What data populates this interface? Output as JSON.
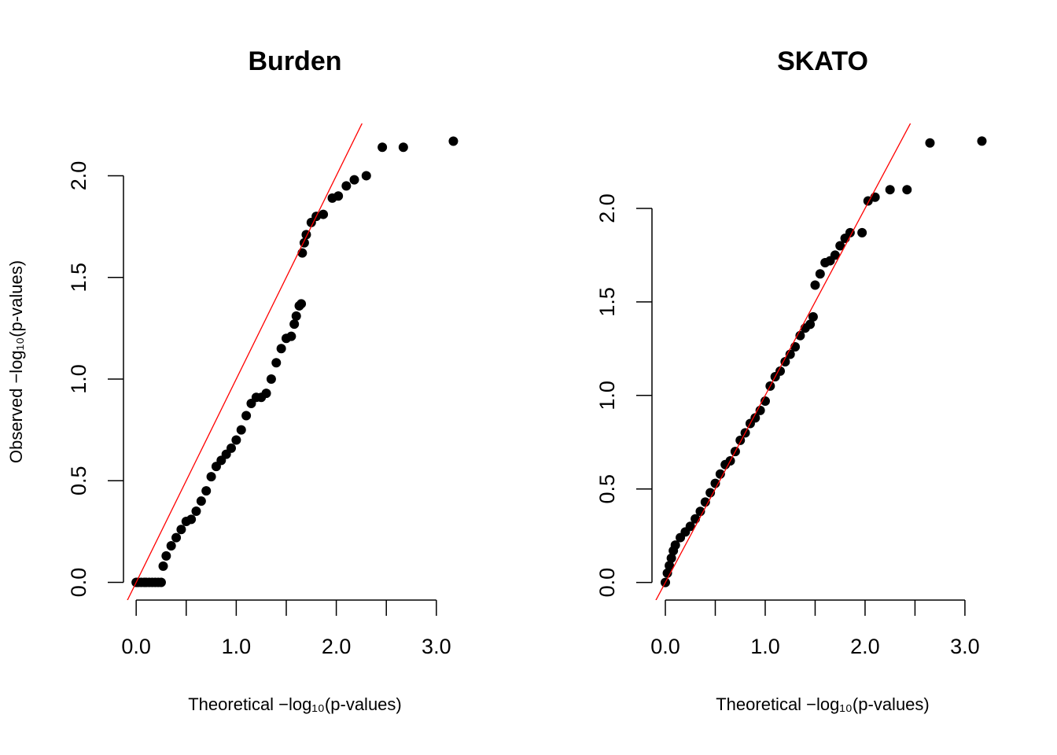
{
  "chart_data": [
    {
      "type": "scatter",
      "title": "Burden",
      "xlabel": "Theoretical −log₁₀(p-values)",
      "ylabel": "Observed −log₁₀(p-values)",
      "color": "#000000",
      "x": [
        0.0,
        0.02,
        0.05,
        0.08,
        0.1,
        0.13,
        0.16,
        0.19,
        0.22,
        0.25,
        0.27,
        0.3,
        0.35,
        0.4,
        0.45,
        0.5,
        0.55,
        0.6,
        0.65,
        0.7,
        0.75,
        0.8,
        0.85,
        0.9,
        0.95,
        1.0,
        1.05,
        1.1,
        1.15,
        1.2,
        1.25,
        1.3,
        1.35,
        1.4,
        1.45,
        1.5,
        1.55,
        1.58,
        1.6,
        1.63,
        1.65,
        1.66,
        1.68,
        1.7,
        1.75,
        1.8,
        1.87,
        1.96,
        2.02,
        2.1,
        2.18,
        2.3,
        2.46,
        2.67,
        3.17
      ],
      "values": [
        0,
        0,
        0,
        0,
        0,
        0,
        0,
        0,
        0,
        0,
        0.08,
        0.13,
        0.18,
        0.22,
        0.26,
        0.3,
        0.31,
        0.35,
        0.4,
        0.45,
        0.52,
        0.57,
        0.6,
        0.63,
        0.66,
        0.7,
        0.75,
        0.82,
        0.88,
        0.91,
        0.91,
        0.93,
        1.0,
        1.08,
        1.15,
        1.2,
        1.21,
        1.27,
        1.31,
        1.36,
        1.37,
        1.62,
        1.67,
        1.71,
        1.77,
        1.8,
        1.81,
        1.89,
        1.9,
        1.95,
        1.98,
        2.0,
        2.14,
        2.14,
        2.17
      ],
      "xlim": [
        -0.127,
        3.3
      ],
      "ylim": [
        -0.087,
        2.257
      ],
      "xticks": [
        {
          "value": 0,
          "label": "0.0"
        },
        {
          "value": 0.5,
          "label": null
        },
        {
          "value": 1,
          "label": "1.0"
        },
        {
          "value": 1.5,
          "label": null
        },
        {
          "value": 2,
          "label": "2.0"
        },
        {
          "value": 2.5,
          "label": null
        },
        {
          "value": 3,
          "label": "3.0"
        }
      ],
      "yticks": [
        {
          "value": 0,
          "label": "0.0"
        },
        {
          "value": 0.5,
          "label": "0.5"
        },
        {
          "value": 1,
          "label": "1.0"
        },
        {
          "value": 1.5,
          "label": "1.5"
        },
        {
          "value": 2,
          "label": "2.0"
        }
      ],
      "reference_line": {
        "slope": 1,
        "intercept": 0,
        "color": "#ff0000"
      }
    },
    {
      "type": "scatter",
      "title": "SKATO",
      "xlabel": "Theoretical −log₁₀(p-values)",
      "color": "#000000",
      "x": [
        0,
        0.02,
        0.04,
        0.06,
        0.08,
        0.1,
        0.15,
        0.2,
        0.25,
        0.3,
        0.35,
        0.4,
        0.45,
        0.5,
        0.55,
        0.6,
        0.65,
        0.7,
        0.75,
        0.8,
        0.85,
        0.9,
        0.95,
        1.0,
        1.05,
        1.1,
        1.15,
        1.2,
        1.25,
        1.3,
        1.35,
        1.4,
        1.45,
        1.48,
        1.5,
        1.55,
        1.6,
        1.65,
        1.7,
        1.75,
        1.8,
        1.85,
        1.97,
        2.03,
        2.1,
        2.25,
        2.42,
        2.65,
        3.17
      ],
      "values": [
        0,
        0.05,
        0.09,
        0.13,
        0.17,
        0.2,
        0.24,
        0.27,
        0.3,
        0.34,
        0.38,
        0.43,
        0.48,
        0.53,
        0.58,
        0.63,
        0.65,
        0.7,
        0.76,
        0.8,
        0.85,
        0.88,
        0.92,
        0.97,
        1.05,
        1.1,
        1.13,
        1.18,
        1.22,
        1.26,
        1.32,
        1.36,
        1.38,
        1.42,
        1.59,
        1.65,
        1.71,
        1.72,
        1.75,
        1.8,
        1.84,
        1.87,
        1.87,
        2.04,
        2.06,
        2.1,
        2.1,
        2.35,
        2.36
      ],
      "xlim": [
        -0.134,
        3.3
      ],
      "ylim": [
        -0.094,
        2.454
      ],
      "xticks": [
        {
          "value": 0,
          "label": "0.0"
        },
        {
          "value": 0.5,
          "label": null
        },
        {
          "value": 1,
          "label": "1.0"
        },
        {
          "value": 1.5,
          "label": null
        },
        {
          "value": 2,
          "label": "2.0"
        },
        {
          "value": 2.5,
          "label": null
        },
        {
          "value": 3,
          "label": "3.0"
        }
      ],
      "yticks": [
        {
          "value": 0,
          "label": "0.0"
        },
        {
          "value": 0.5,
          "label": "0.5"
        },
        {
          "value": 1,
          "label": "1.0"
        },
        {
          "value": 1.5,
          "label": "1.5"
        },
        {
          "value": 2,
          "label": "2.0"
        }
      ],
      "reference_line": {
        "slope": 1,
        "intercept": 0,
        "color": "#ff0000"
      }
    }
  ]
}
